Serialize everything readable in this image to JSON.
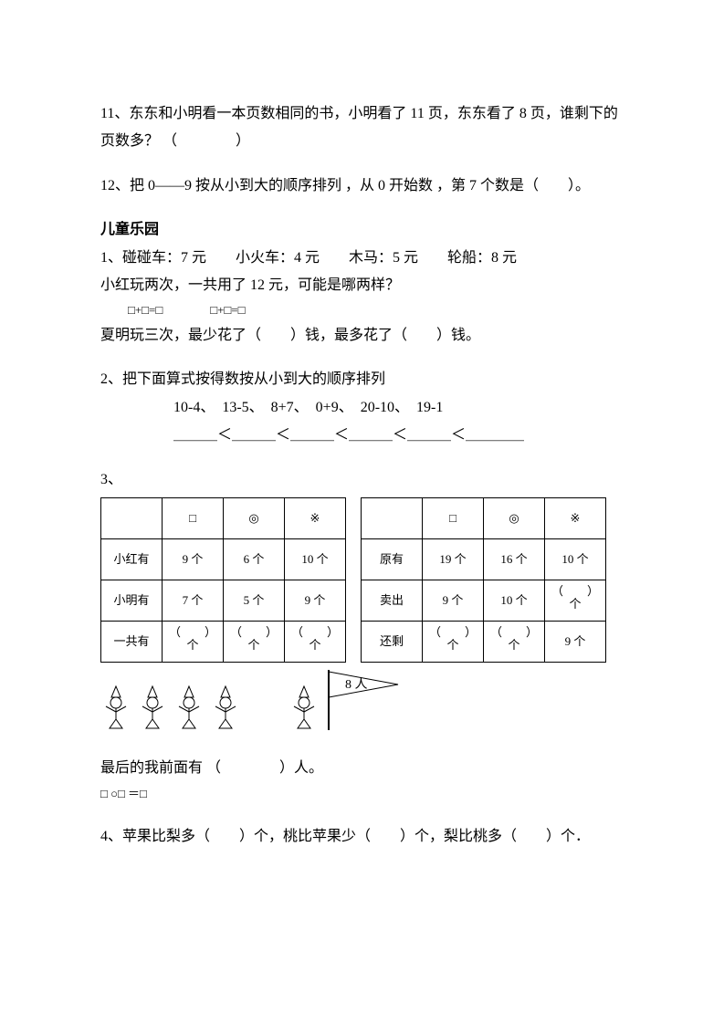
{
  "q11": "11、东东和小明看一本页数相同的书，小明看了 11 页，东东看了 8 页，谁剩下的页数多？ （　　　　）",
  "q12": "12、把 0——9 按从小到大的顺序排列 ，从 0 开始数 ，第 7 个数是（　　）。",
  "park": {
    "heading": "儿童乐园",
    "line1": "1、碰碰车：7 元　　小火车：4 元　　木马：5 元　　轮船：8 元",
    "line2": "小红玩两次，一共用了 12 元，可能是哪两样？",
    "eq": "□+□=□　　　　□+□=□",
    "line3": "夏明玩三次，最少花了（　　）钱，最多花了（　　）钱。"
  },
  "q2": {
    "title": "2、把下面算式按得数按从小到大的顺序排列",
    "exprs": "10-4、　13-5、　8+7、　0+9、　20-10、　19-1",
    "blanks": "＿＿＿＜＿＿＿＜＿＿＿＜＿＿＿＜＿＿＿＜＿＿＿＿"
  },
  "q3label": "3、",
  "tableA": {
    "h": [
      "",
      "□",
      "◎",
      "※"
    ],
    "r1": [
      "小红有",
      "9 个",
      "6 个",
      "10 个"
    ],
    "r2": [
      "小明有",
      "7 个",
      "5 个",
      "9 个"
    ],
    "r3": [
      "一共有",
      "（　　）\n个",
      "（　　）\n个",
      "（　　）\n个"
    ]
  },
  "tableB": {
    "h": [
      "",
      "□",
      "◎",
      "※"
    ],
    "r1": [
      "原有",
      "19 个",
      "16 个",
      "10 个"
    ],
    "r2": [
      "卖出",
      "9 个",
      "10 个",
      "（　　）\n个"
    ],
    "r3": [
      "还剩",
      "（　　）\n个",
      "（　　）\n个",
      "9 个"
    ]
  },
  "flagLabel": "8 人",
  "figLine": "最后的我前面有 （　　　　）人。",
  "figEq": "□ ○□ ＝□",
  "q4": "4、苹果比梨多（　　）个，桃比苹果少（　　）个，梨比桃多（　　）个．"
}
